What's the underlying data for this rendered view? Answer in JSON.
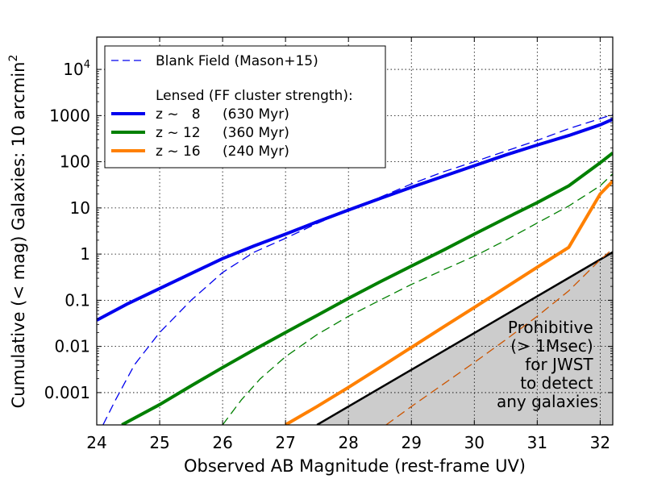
{
  "chart_data": {
    "type": "line",
    "xlabel": "Observed AB Magnitude (rest-frame UV)",
    "ylabel": "Cumulative (< mag) Galaxies: 10 arcmin",
    "ylabel_sup": "2",
    "xlim": [
      24,
      32.2
    ],
    "ylim_log10": [
      -3.7,
      4.7
    ],
    "y_scale": "log",
    "grid": true,
    "legend_placement": "top-left",
    "x_ticks": [
      {
        "v": 24,
        "label": "24"
      },
      {
        "v": 25,
        "label": "25"
      },
      {
        "v": 26,
        "label": "26"
      },
      {
        "v": 27,
        "label": "27"
      },
      {
        "v": 28,
        "label": "28"
      },
      {
        "v": 29,
        "label": "29"
      },
      {
        "v": 30,
        "label": "30"
      },
      {
        "v": 31,
        "label": "31"
      },
      {
        "v": 32,
        "label": "32"
      }
    ],
    "y_ticks": [
      {
        "log": -3,
        "label": "0.001"
      },
      {
        "log": -2,
        "label": "0.01"
      },
      {
        "log": -1,
        "label": "0.1"
      },
      {
        "log": 0,
        "label": "1"
      },
      {
        "log": 1,
        "label": "10"
      },
      {
        "log": 2,
        "label": "100"
      },
      {
        "log": 3,
        "label": "1000"
      },
      {
        "log": 4,
        "label": "10",
        "sup": "4"
      }
    ],
    "legend": {
      "blank_label": "Blank Field (Mason+15)",
      "lensed_header": "Lensed (FF cluster strength):",
      "items": [
        {
          "z": "z ~   8",
          "age": "(630 Myr)",
          "color": "#0000ee"
        },
        {
          "z": "z ~ 12",
          "age": "(360 Myr)",
          "color": "#008000"
        },
        {
          "z": "z ~ 16",
          "age": "(240 Myr)",
          "color": "#ff8000"
        }
      ]
    },
    "series": [
      {
        "key": "z8_lensed",
        "color": "#0000ee",
        "style": "solid",
        "width": 4,
        "x": [
          24,
          24.5,
          25,
          25.5,
          26,
          26.5,
          27,
          27.5,
          28,
          28.5,
          29,
          29.5,
          30,
          30.5,
          31,
          31.5,
          32,
          32.2
        ],
        "y": [
          0.037,
          0.085,
          0.18,
          0.38,
          0.8,
          1.5,
          2.7,
          5.0,
          9.0,
          16,
          28,
          48,
          82,
          140,
          230,
          370,
          630,
          830
        ]
      },
      {
        "key": "z8_blank",
        "color": "#0000ee",
        "style": "dashed",
        "width": 1.3,
        "x": [
          24.1,
          24.3,
          24.6,
          25,
          25.5,
          26,
          26.5,
          27,
          27.5,
          28,
          28.5,
          29,
          29.5,
          30,
          30.5,
          31,
          31.5,
          32,
          32.2
        ],
        "y": [
          0.0002,
          0.0007,
          0.004,
          0.02,
          0.1,
          0.4,
          1.1,
          2.2,
          4.6,
          9.0,
          17,
          33,
          60,
          100,
          170,
          290,
          520,
          860,
          1050
        ]
      },
      {
        "key": "z12_lensed",
        "color": "#008000",
        "style": "solid",
        "width": 4,
        "x": [
          24.4,
          25,
          25.5,
          26,
          26.5,
          27,
          27.5,
          28,
          28.5,
          29,
          29.5,
          30,
          30.5,
          31,
          31.5,
          32,
          32.2
        ],
        "y": [
          0.0002,
          0.00055,
          0.0014,
          0.0035,
          0.0085,
          0.02,
          0.047,
          0.11,
          0.25,
          0.55,
          1.2,
          2.7,
          6.0,
          13,
          30,
          95,
          155
        ]
      },
      {
        "key": "z12_blank",
        "color": "#008000",
        "style": "dashed",
        "width": 1.3,
        "x": [
          26.0,
          26.3,
          26.6,
          27,
          27.5,
          28,
          28.5,
          29,
          29.5,
          30,
          30.5,
          31,
          31.5,
          32,
          32.2
        ],
        "y": [
          0.0002,
          0.0007,
          0.002,
          0.006,
          0.018,
          0.045,
          0.1,
          0.22,
          0.45,
          0.9,
          2.0,
          4.7,
          11,
          30,
          55
        ]
      },
      {
        "key": "z16_lensed",
        "color": "#ff8000",
        "style": "solid",
        "width": 4,
        "x": [
          27,
          27.5,
          28,
          28.5,
          29,
          29.5,
          30,
          30.5,
          31,
          31.5,
          32,
          32.2
        ],
        "y": [
          0.0002,
          0.0005,
          0.0013,
          0.0035,
          0.0095,
          0.026,
          0.07,
          0.19,
          0.52,
          1.4,
          20,
          38
        ]
      },
      {
        "key": "z16_blank",
        "color": "#cc5500",
        "style": "dashed",
        "width": 1.3,
        "x": [
          28.6,
          29,
          29.5,
          30,
          30.5,
          31,
          31.5,
          32,
          32.2
        ],
        "y": [
          0.0002,
          0.0005,
          0.0015,
          0.0045,
          0.014,
          0.045,
          0.16,
          0.75,
          1.3
        ]
      }
    ],
    "prohibitive_region": {
      "line_x": [
        27.5,
        32.2
      ],
      "line_y": [
        0.0002,
        1.1
      ],
      "fill": "#cccccc",
      "label_lines": [
        "Prohibitive",
        "(> 1Msec)",
        "for JWST",
        "to detect",
        "any galaxies"
      ]
    }
  }
}
